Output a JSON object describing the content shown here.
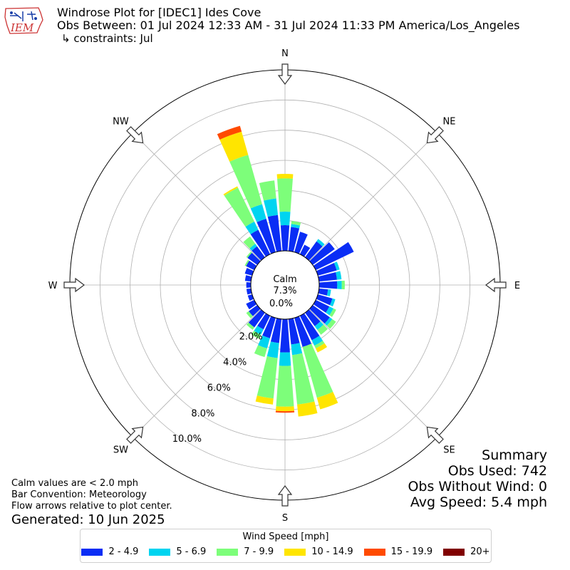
{
  "header": {
    "title": "Windrose Plot for [IDEC1] Ides Cove",
    "obs_between": "Obs Between: 01 Jul 2024 12:33 AM - 31 Jul 2024 11:33 PM America/Los_Angeles",
    "constraints": "↳ constraints: Jul",
    "logo_text": "IEM"
  },
  "notes": {
    "calm_values": "Calm values are < 2.0 mph",
    "bar_convention": "Bar Convention: Meteorology",
    "flow_arrows": "Flow arrows relative to plot center.",
    "generated": "Generated: 10 Jun 2025"
  },
  "summary": {
    "title": "Summary",
    "obs_used": "Obs Used: 742",
    "obs_without_wind": "Obs Without Wind: 0",
    "avg_speed": "Avg Speed: 5.4 mph"
  },
  "legend": {
    "title": "Wind Speed [mph]",
    "items": [
      {
        "label": "2 - 4.9",
        "color": "#0a2df5"
      },
      {
        "label": "5 - 6.9",
        "color": "#00d4f0"
      },
      {
        "label": "7 - 9.9",
        "color": "#7dfe7a"
      },
      {
        "label": "10 - 14.9",
        "color": "#ffe500"
      },
      {
        "label": "15 - 19.9",
        "color": "#ff4a00"
      },
      {
        "label": "20+",
        "color": "#800000"
      }
    ]
  },
  "chart_data": {
    "type": "windrose",
    "title": "Windrose Plot for [IDEC1] Ides Cove",
    "calm_label": "Calm",
    "calm_value": "7.3%",
    "radial_tick_labels": [
      "0.0%",
      "2.0%",
      "4.0%",
      "6.0%",
      "8.0%",
      "10.0%"
    ],
    "radial_ticks": [
      0,
      2,
      4,
      6,
      8,
      10
    ],
    "rmax": 12,
    "compass_labels": [
      {
        "label": "N",
        "angle": 0
      },
      {
        "label": "NE",
        "angle": 45
      },
      {
        "label": "E",
        "angle": 90
      },
      {
        "label": "SE",
        "angle": 135
      },
      {
        "label": "S",
        "angle": 180
      },
      {
        "label": "SW",
        "angle": 225
      },
      {
        "label": "W",
        "angle": 270
      },
      {
        "label": "NW",
        "angle": 315
      }
    ],
    "speed_bins": [
      "2 - 4.9",
      "5 - 6.9",
      "7 - 9.9",
      "10 - 14.9",
      "15 - 19.9",
      "20+"
    ],
    "bin_colors": [
      "#0a2df5",
      "#00d4f0",
      "#7dfe7a",
      "#ffe500",
      "#ff4a00",
      "#800000"
    ],
    "directions": [
      0,
      10,
      20,
      30,
      40,
      50,
      60,
      70,
      80,
      90,
      100,
      110,
      120,
      130,
      140,
      150,
      160,
      170,
      180,
      190,
      200,
      210,
      220,
      230,
      240,
      250,
      260,
      270,
      280,
      290,
      300,
      310,
      320,
      330,
      340,
      350
    ],
    "values": [
      [
        1.7,
        0.9,
        2.2,
        0.3,
        0.0,
        0.0
      ],
      [
        1.6,
        0.2,
        0.2,
        0.0,
        0.0,
        0.0
      ],
      [
        1.4,
        0.0,
        0.0,
        0.0,
        0.0,
        0.0
      ],
      [
        0.7,
        0.0,
        0.0,
        0.0,
        0.0,
        0.0
      ],
      [
        1.3,
        0.2,
        0.0,
        0.0,
        0.0,
        0.0
      ],
      [
        1.8,
        0.0,
        0.0,
        0.0,
        0.0,
        0.0
      ],
      [
        2.8,
        0.0,
        0.0,
        0.0,
        0.0,
        0.0
      ],
      [
        1.3,
        0.2,
        0.0,
        0.0,
        0.0,
        0.0
      ],
      [
        1.2,
        0.3,
        0.0,
        0.0,
        0.0,
        0.0
      ],
      [
        1.2,
        0.3,
        0.2,
        0.0,
        0.0,
        0.0
      ],
      [
        0.6,
        0.2,
        0.0,
        0.0,
        0.0,
        0.0
      ],
      [
        1.0,
        0.2,
        0.0,
        0.0,
        0.0,
        0.0
      ],
      [
        1.0,
        0.3,
        0.2,
        0.0,
        0.0,
        0.0
      ],
      [
        1.4,
        0.2,
        0.3,
        0.0,
        0.0,
        0.0
      ],
      [
        1.1,
        0.3,
        0.4,
        0.0,
        0.0,
        0.0
      ],
      [
        1.8,
        0.4,
        0.2,
        0.3,
        0.0,
        0.0
      ],
      [
        2.0,
        0.0,
        3.5,
        0.8,
        0.0,
        0.0
      ],
      [
        1.7,
        0.7,
        3.3,
        0.8,
        0.0,
        0.0
      ],
      [
        2.2,
        0.9,
        2.7,
        0.3,
        0.1,
        0.0
      ],
      [
        1.6,
        1.0,
        2.7,
        0.4,
        0.0,
        0.0
      ],
      [
        1.4,
        0.7,
        0.6,
        0.0,
        0.0,
        0.0
      ],
      [
        1.0,
        0.4,
        0.3,
        0.0,
        0.0,
        0.0
      ],
      [
        1.2,
        0.0,
        0.2,
        0.0,
        0.0,
        0.0
      ],
      [
        0.7,
        0.0,
        0.2,
        0.0,
        0.0,
        0.0
      ],
      [
        0.6,
        0.0,
        0.0,
        0.0,
        0.0,
        0.0
      ],
      [
        0.3,
        0.0,
        0.0,
        0.0,
        0.0,
        0.0
      ],
      [
        0.3,
        0.0,
        0.0,
        0.0,
        0.0,
        0.0
      ],
      [
        0.3,
        0.0,
        0.0,
        0.0,
        0.0,
        0.0
      ],
      [
        0.4,
        0.0,
        0.0,
        0.0,
        0.0,
        0.0
      ],
      [
        0.5,
        0.0,
        0.0,
        0.0,
        0.0,
        0.0
      ],
      [
        0.6,
        0.0,
        0.1,
        0.0,
        0.0,
        0.0
      ],
      [
        0.8,
        0.0,
        0.1,
        0.0,
        0.0,
        0.0
      ],
      [
        0.9,
        0.2,
        0.6,
        0.0,
        0.0,
        0.0
      ],
      [
        1.8,
        0.6,
        2.5,
        0.1,
        0.0,
        0.0
      ],
      [
        2.3,
        1.0,
        3.4,
        1.6,
        0.4,
        0.0
      ],
      [
        2.4,
        1.1,
        1.2,
        0.0,
        0.0,
        0.0
      ]
    ]
  }
}
